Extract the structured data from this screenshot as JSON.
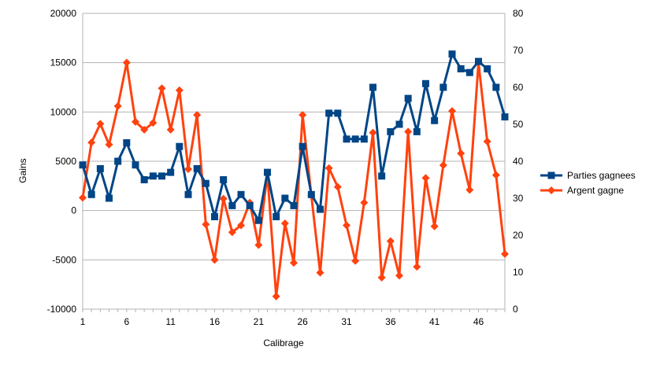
{
  "chart_data": {
    "type": "line",
    "title": "",
    "xlabel": "Calibrage",
    "ylabel": "Gains",
    "ylim": [
      -10000,
      20000
    ],
    "y_ticks": [
      -10000,
      -5000,
      0,
      5000,
      10000,
      15000,
      20000
    ],
    "y2lim": [
      0,
      80
    ],
    "y2_ticks": [
      0,
      10,
      20,
      30,
      40,
      50,
      60,
      70,
      80
    ],
    "x_ticks": [
      1,
      6,
      11,
      16,
      21,
      26,
      31,
      36,
      41,
      46
    ],
    "x_range": [
      1,
      49
    ],
    "grid": "horizontal",
    "legend_position": "right",
    "x": [
      1,
      2,
      3,
      4,
      5,
      6,
      7,
      8,
      9,
      10,
      11,
      12,
      13,
      14,
      15,
      16,
      17,
      18,
      19,
      20,
      21,
      22,
      23,
      24,
      25,
      26,
      27,
      28,
      29,
      30,
      31,
      32,
      33,
      34,
      35,
      36,
      37,
      38,
      39,
      40,
      41,
      42,
      43,
      44,
      45,
      46,
      47,
      48,
      49
    ],
    "series": [
      {
        "name": "Parties gagnees",
        "axis": "secondary",
        "color": "#004586",
        "marker": "square",
        "values": [
          39,
          31,
          38,
          30,
          40,
          45,
          39,
          35,
          36,
          36,
          37,
          44,
          31,
          38,
          34,
          25,
          35,
          28,
          31,
          28,
          24,
          37,
          25,
          30,
          28,
          44,
          31,
          27,
          53,
          53,
          46,
          46,
          46,
          60,
          36,
          48,
          50,
          57,
          48,
          61,
          51,
          60,
          69,
          65,
          64,
          67,
          65,
          60,
          52
        ]
      },
      {
        "name": "Argent gagne",
        "axis": "primary",
        "color": "#ff420e",
        "marker": "diamond",
        "values": [
          1300,
          6900,
          8800,
          6700,
          10600,
          15000,
          9000,
          8200,
          8900,
          12400,
          8200,
          12200,
          4200,
          9700,
          -1400,
          -5000,
          1200,
          -2200,
          -1500,
          800,
          -3500,
          3700,
          -8700,
          -1300,
          -5300,
          9700,
          1500,
          -6300,
          4300,
          2400,
          -1500,
          -5100,
          800,
          7900,
          -6800,
          -3100,
          -6600,
          8000,
          -5700,
          3300,
          -1600,
          4600,
          10100,
          5800,
          2100,
          15000,
          7000,
          3600,
          -4400
        ]
      }
    ]
  }
}
